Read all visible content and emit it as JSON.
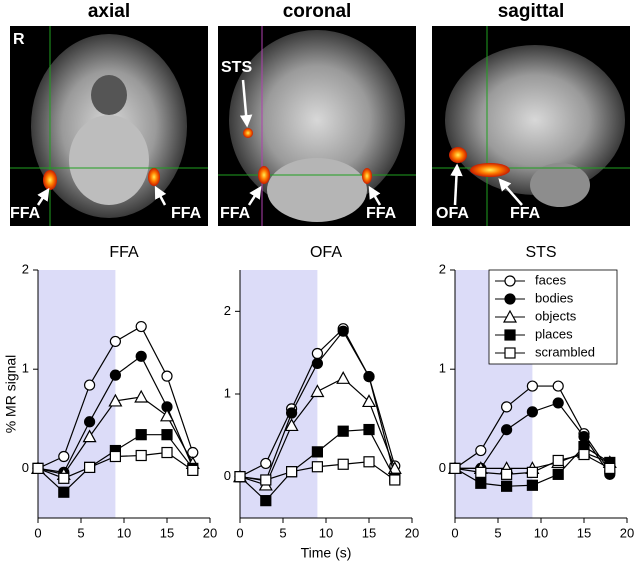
{
  "panels": [
    {
      "title": "axial",
      "labels": [
        "R",
        "FFA",
        "FFA"
      ]
    },
    {
      "title": "coronal",
      "labels": [
        "STS",
        "FFA",
        "FFA"
      ]
    },
    {
      "title": "sagittal",
      "labels": [
        "OFA",
        "FFA"
      ]
    }
  ],
  "chart_data": [
    {
      "type": "line",
      "title": "FFA",
      "y_label": "% MR signal",
      "x": [
        0,
        3,
        6,
        9,
        12,
        15,
        18
      ],
      "xlim": [
        0,
        20
      ],
      "xticks": [
        0,
        5,
        10,
        15,
        20
      ],
      "ylim": [
        -0.5,
        2
      ],
      "yticks": [
        0,
        1,
        2
      ],
      "highlight_x": [
        0,
        9
      ],
      "highlight_color": "#dcdcf8",
      "series": [
        {
          "marker": "circle",
          "filled": false,
          "values": [
            0,
            0.12,
            0.84,
            1.28,
            1.43,
            0.93,
            0.16
          ]
        },
        {
          "marker": "circle",
          "filled": true,
          "values": [
            0,
            -0.04,
            0.47,
            0.94,
            1.13,
            0.62,
            0.01
          ]
        },
        {
          "marker": "triangle",
          "filled": false,
          "values": [
            0,
            -0.06,
            0.32,
            0.68,
            0.72,
            0.53,
            0.05
          ]
        },
        {
          "marker": "square",
          "filled": true,
          "values": [
            0,
            -0.24,
            0.01,
            0.18,
            0.34,
            0.34,
            0.0
          ]
        },
        {
          "marker": "square",
          "filled": false,
          "values": [
            0,
            -0.1,
            0.01,
            0.12,
            0.13,
            0.16,
            -0.02
          ]
        }
      ]
    },
    {
      "type": "line",
      "title": "OFA",
      "x_label": "Time (s)",
      "x": [
        0,
        3,
        6,
        9,
        12,
        15,
        18
      ],
      "xlim": [
        0,
        20
      ],
      "xticks": [
        0,
        5,
        10,
        15,
        20
      ],
      "ylim": [
        -0.5,
        2.5
      ],
      "yticks": [
        0,
        1,
        2
      ],
      "highlight_x": [
        0,
        9
      ],
      "highlight_color": "#dcdcf8",
      "series": [
        {
          "marker": "circle",
          "filled": false,
          "values": [
            0,
            0.16,
            0.82,
            1.49,
            1.79,
            1.21,
            0.13
          ]
        },
        {
          "marker": "circle",
          "filled": true,
          "values": [
            0,
            -0.05,
            0.77,
            1.37,
            1.76,
            1.21,
            0.0
          ]
        },
        {
          "marker": "triangle",
          "filled": false,
          "values": [
            0,
            -0.1,
            0.62,
            1.03,
            1.19,
            0.91,
            0.1
          ]
        },
        {
          "marker": "square",
          "filled": true,
          "values": [
            0,
            -0.29,
            0.06,
            0.3,
            0.55,
            0.57,
            -0.02
          ]
        },
        {
          "marker": "square",
          "filled": false,
          "values": [
            0,
            -0.04,
            0.06,
            0.12,
            0.15,
            0.18,
            -0.04
          ]
        }
      ]
    },
    {
      "type": "line",
      "title": "STS",
      "legend": "upper right",
      "x": [
        0,
        3,
        6,
        9,
        12,
        15,
        18
      ],
      "xlim": [
        0,
        20
      ],
      "xticks": [
        0,
        5,
        10,
        15,
        20
      ],
      "ylim": [
        -0.5,
        2
      ],
      "yticks": [
        0,
        1,
        2
      ],
      "highlight_x": [
        0,
        9
      ],
      "highlight_color": "#dcdcf8",
      "series": [
        {
          "name": "faces",
          "marker": "circle",
          "filled": false,
          "values": [
            0,
            0.18,
            0.62,
            0.83,
            0.83,
            0.35,
            -0.03
          ]
        },
        {
          "name": "bodies",
          "marker": "circle",
          "filled": true,
          "values": [
            0,
            0.0,
            0.39,
            0.57,
            0.66,
            0.32,
            -0.06
          ]
        },
        {
          "name": "objects",
          "marker": "triangle",
          "filled": false,
          "values": [
            0,
            0.0,
            0.0,
            0.0,
            0.06,
            0.16,
            0.06
          ]
        },
        {
          "name": "places",
          "marker": "square",
          "filled": true,
          "values": [
            0,
            -0.15,
            -0.18,
            -0.17,
            -0.06,
            0.22,
            0.06
          ]
        },
        {
          "name": "scrambled",
          "marker": "square",
          "filled": false,
          "values": [
            0,
            -0.04,
            -0.06,
            -0.04,
            0.08,
            0.14,
            0.0
          ]
        }
      ]
    }
  ]
}
